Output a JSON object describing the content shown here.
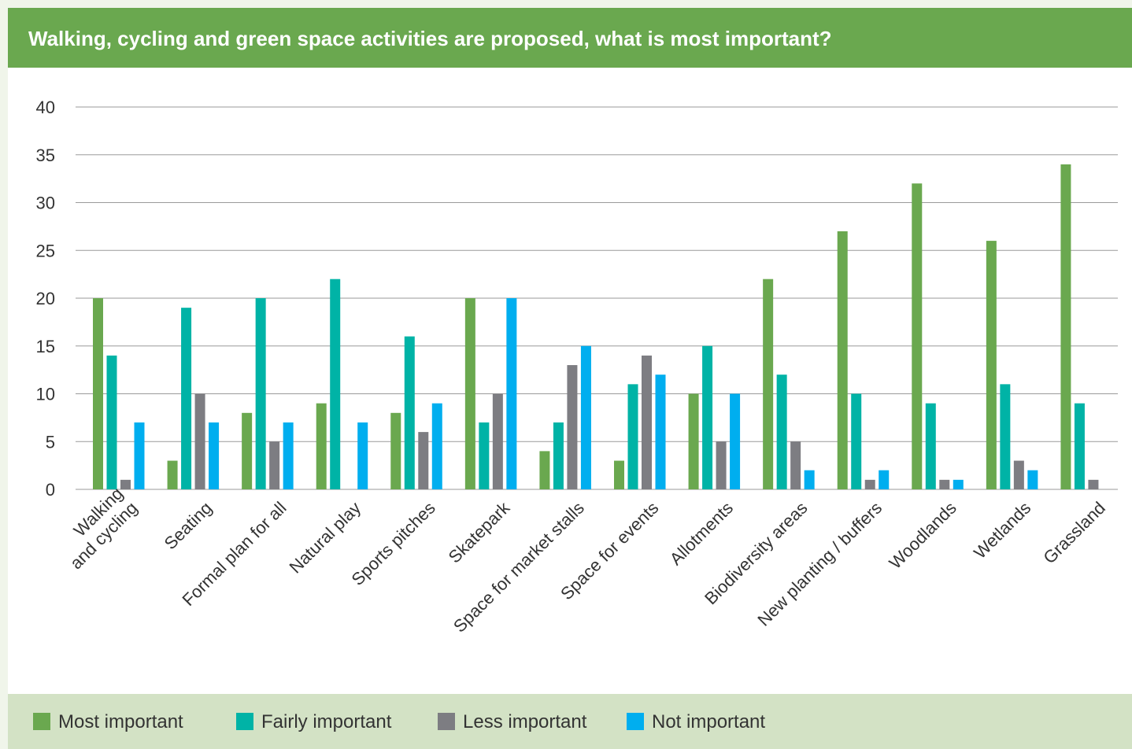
{
  "colors": {
    "most": "#6aa84f",
    "fairly": "#00b3a6",
    "less": "#7d7d82",
    "not": "#00aeef"
  },
  "chart_data": {
    "type": "bar",
    "title": "Walking, cycling and green space activities are proposed, what is most important?",
    "categories": [
      "Walking\nand cycling",
      "Seating",
      "Formal plan for all",
      "Natural play",
      "Sports pitches",
      "Skatepark",
      "Space for market stalls",
      "Space for events",
      "Allotments",
      "Biodiversity areas",
      "New planting / buffers",
      "Woodlands",
      "Wetlands",
      "Grassland"
    ],
    "series": [
      {
        "name": "Most important",
        "color": "#6aa84f",
        "values": [
          20,
          3,
          8,
          9,
          8,
          20,
          4,
          3,
          10,
          22,
          27,
          32,
          26,
          34
        ]
      },
      {
        "name": "Fairly important",
        "color": "#00b3a6",
        "values": [
          14,
          19,
          20,
          22,
          16,
          7,
          7,
          11,
          15,
          12,
          10,
          9,
          11,
          9
        ]
      },
      {
        "name": "Less important",
        "color": "#7d7d82",
        "values": [
          1,
          10,
          5,
          0,
          6,
          10,
          13,
          14,
          5,
          5,
          1,
          1,
          3,
          1
        ]
      },
      {
        "name": "Not important",
        "color": "#00aeef",
        "values": [
          7,
          7,
          7,
          7,
          9,
          20,
          15,
          12,
          10,
          2,
          2,
          1,
          2,
          0
        ]
      }
    ],
    "ylim": [
      0,
      40
    ],
    "yticks": [
      0,
      5,
      10,
      15,
      20,
      25,
      30,
      35,
      40
    ],
    "grid": true,
    "legend_position": "bottom"
  }
}
